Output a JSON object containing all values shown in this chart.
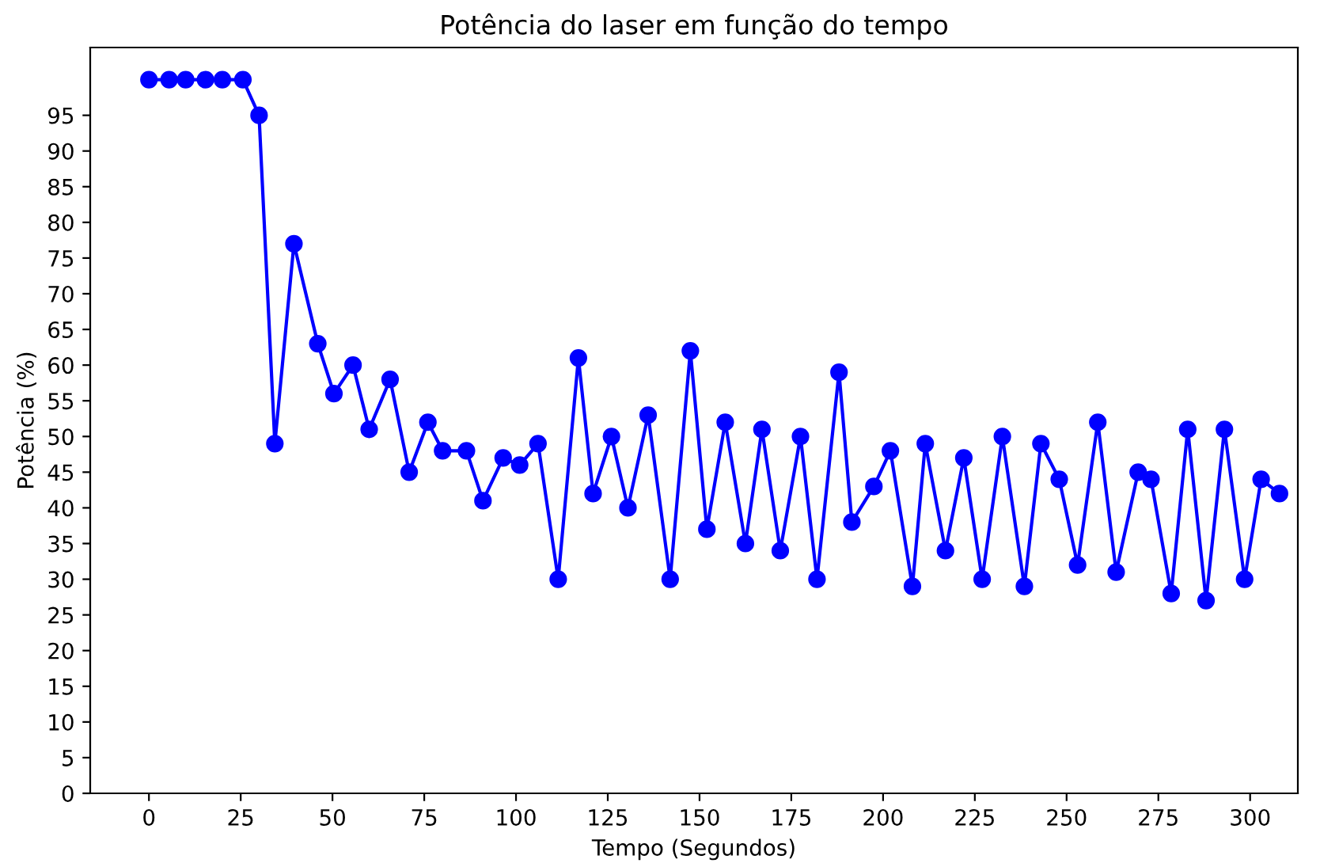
{
  "chart_data": {
    "type": "line",
    "title": "Potência do laser em função do tempo",
    "xlabel": "Tempo (Segundos)",
    "ylabel": "Potência (%)",
    "x": [
      0,
      5.5,
      10,
      15.4,
      20,
      25.6,
      30,
      34.3,
      39.5,
      46,
      50.4,
      55.6,
      60,
      65.7,
      70.9,
      76,
      80,
      86.5,
      91,
      96.5,
      101,
      106,
      111.5,
      117,
      121,
      126,
      130.5,
      136,
      142,
      147.5,
      152,
      157,
      162.5,
      167,
      172,
      177.5,
      182,
      188,
      191.5,
      197.5,
      202,
      208,
      211.5,
      217,
      222,
      227,
      232.5,
      238.5,
      243,
      248,
      253,
      258.5,
      263.5,
      269.5,
      273,
      278.5,
      283,
      288,
      293,
      298.5,
      303,
      308
    ],
    "series": [
      {
        "color": "#0000ff",
        "values": [
          100,
          100,
          100,
          100,
          100,
          100,
          95,
          49,
          77,
          63,
          56,
          60,
          51,
          58,
          45,
          52,
          48,
          48,
          41,
          47,
          46,
          49,
          30,
          61,
          42,
          50,
          40,
          53,
          30,
          62,
          37,
          52,
          35,
          51,
          34,
          50,
          30,
          59,
          38,
          43,
          48,
          29,
          49,
          34,
          47,
          30,
          50,
          29,
          49,
          44,
          32,
          52,
          31,
          45,
          44,
          28,
          51,
          27,
          51,
          30,
          44,
          42
        ]
      }
    ],
    "xlim": [
      -16,
      313
    ],
    "ylim": [
      0,
      104.5
    ],
    "xticks": [
      0,
      25,
      50,
      75,
      100,
      125,
      150,
      175,
      200,
      225,
      250,
      275,
      300
    ],
    "yticks": [
      0,
      5,
      10,
      15,
      20,
      25,
      30,
      35,
      40,
      45,
      50,
      55,
      60,
      65,
      70,
      75,
      80,
      85,
      90,
      95
    ],
    "marker": "circle",
    "line_style": "solid",
    "grid": false,
    "legend": false
  }
}
